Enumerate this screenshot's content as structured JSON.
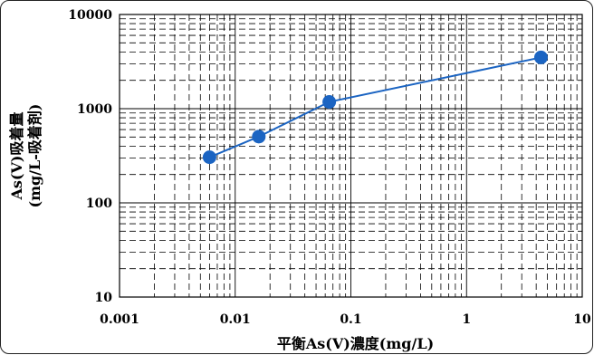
{
  "chart_data": {
    "type": "scatter",
    "xscale": "log",
    "yscale": "log",
    "xlim": [
      0.001,
      10
    ],
    "ylim": [
      10,
      10000
    ],
    "grid": true,
    "xlabel": "平衡As(Ⅴ)濃度(mg/L)",
    "ylabel": [
      "As(Ⅴ)吸着量",
      "(mg/L-吸着剤)"
    ],
    "x_ticks": [
      "0.001",
      "0.01",
      "0.1",
      "1",
      "10"
    ],
    "y_ticks": [
      "10",
      "100",
      "1000",
      "10000"
    ],
    "series": [
      {
        "color": "#1b64c2",
        "points": [
          {
            "x": 0.006,
            "y": 305
          },
          {
            "x": 0.016,
            "y": 505
          },
          {
            "x": 0.065,
            "y": 1180
          },
          {
            "x": 4.4,
            "y": 3500
          }
        ]
      }
    ]
  }
}
